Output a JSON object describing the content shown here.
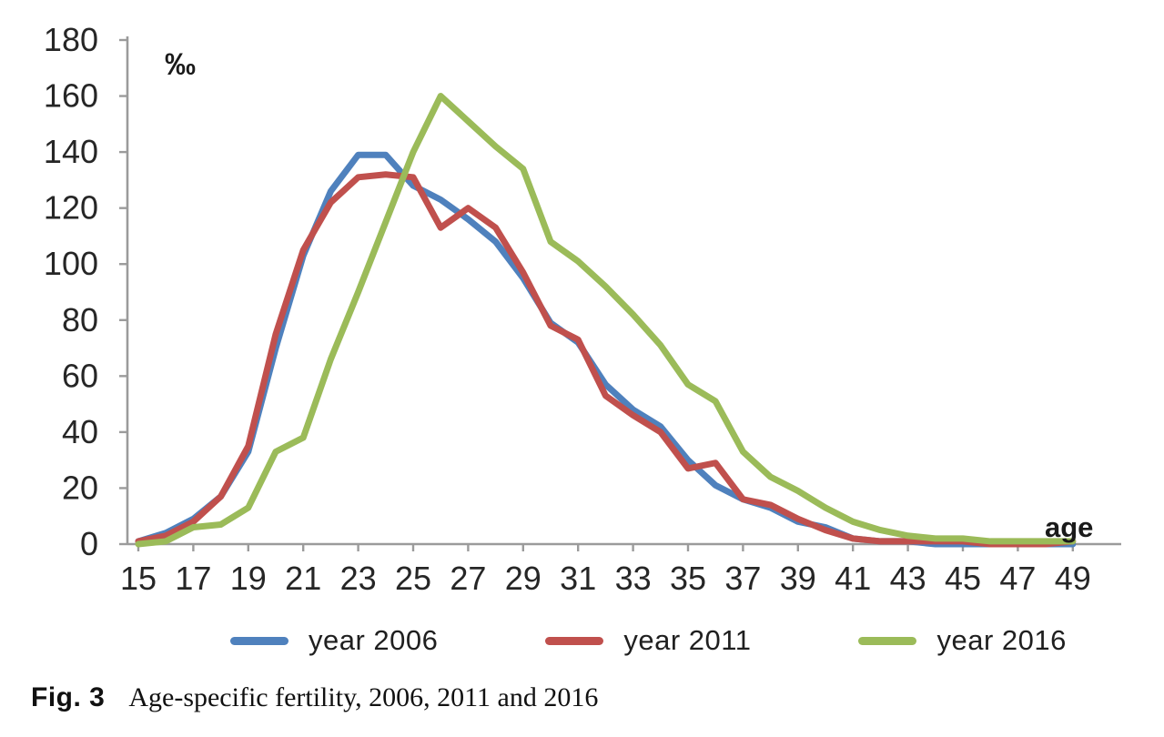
{
  "figure": {
    "caption_label": "Fig. 3",
    "caption_text": "Age-specific fertility, 2006, 2011 and 2016"
  },
  "chart_data": {
    "type": "line",
    "title": "",
    "unit_label": "‰",
    "xlabel": "age",
    "ylabel": "‰",
    "xlim": [
      15,
      49
    ],
    "ylim": [
      0,
      180
    ],
    "grid": false,
    "legend_position": "bottom",
    "x": [
      15,
      16,
      17,
      18,
      19,
      20,
      21,
      22,
      23,
      24,
      25,
      26,
      27,
      28,
      29,
      30,
      31,
      32,
      33,
      34,
      35,
      36,
      37,
      38,
      39,
      40,
      41,
      42,
      43,
      44,
      45,
      46,
      47,
      48,
      49
    ],
    "x_ticks": [
      15,
      17,
      19,
      21,
      23,
      25,
      27,
      29,
      31,
      33,
      35,
      37,
      39,
      41,
      43,
      45,
      47,
      49
    ],
    "y_ticks": [
      0,
      20,
      40,
      60,
      80,
      100,
      120,
      140,
      160,
      180
    ],
    "series": [
      {
        "name": "year 2006",
        "color": "#4F81BD",
        "values": [
          1,
          4,
          9,
          17,
          33,
          70,
          103,
          126,
          139,
          139,
          128,
          123,
          116,
          108,
          95,
          79,
          72,
          57,
          48,
          42,
          30,
          21,
          16,
          13,
          8,
          6,
          2,
          1,
          1,
          0,
          0,
          0,
          0,
          0,
          0
        ]
      },
      {
        "name": "year 2011",
        "color": "#C0504D",
        "values": [
          1,
          3,
          8,
          17,
          35,
          75,
          105,
          122,
          131,
          132,
          131,
          113,
          120,
          113,
          97,
          78,
          73,
          53,
          46,
          40,
          27,
          29,
          16,
          14,
          9,
          5,
          2,
          1,
          1,
          1,
          1,
          0,
          0,
          0,
          1
        ]
      },
      {
        "name": "year 2016",
        "color": "#9BBB59",
        "values": [
          0,
          1,
          6,
          7,
          13,
          33,
          38,
          66,
          90,
          115,
          140,
          160,
          151,
          142,
          134,
          108,
          101,
          92,
          82,
          71,
          57,
          51,
          33,
          24,
          19,
          13,
          8,
          5,
          3,
          2,
          2,
          1,
          1,
          1,
          1
        ]
      }
    ]
  },
  "colors": {
    "axis": "#9b9b9b",
    "tick_text": "#262626"
  }
}
